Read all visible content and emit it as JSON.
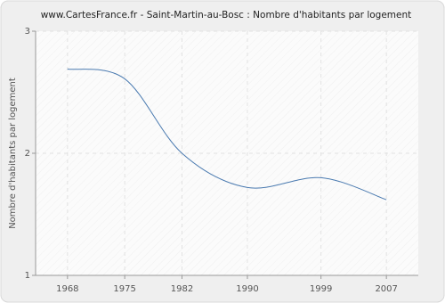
{
  "chart_data": {
    "type": "line",
    "title": "www.CartesFrance.fr - Saint-Martin-au-Bosc : Nombre d'habitants par logement",
    "y_label": "Nombre d'habitants par logement",
    "x": [
      1968,
      1975,
      1982,
      1990,
      1999,
      2007
    ],
    "series": [
      {
        "name": "Nombre d'habitants par logement",
        "color": "#4a7ab0",
        "values": [
          2.69,
          2.61,
          2.0,
          1.72,
          1.8,
          1.62
        ]
      }
    ],
    "xlim": [
      1964.1,
      2010.9
    ],
    "xticks": [
      1968,
      1975,
      1982,
      1990,
      1999,
      2007
    ],
    "ylim": [
      1,
      3
    ],
    "yticks": [
      1,
      2,
      3
    ],
    "grid": true
  }
}
